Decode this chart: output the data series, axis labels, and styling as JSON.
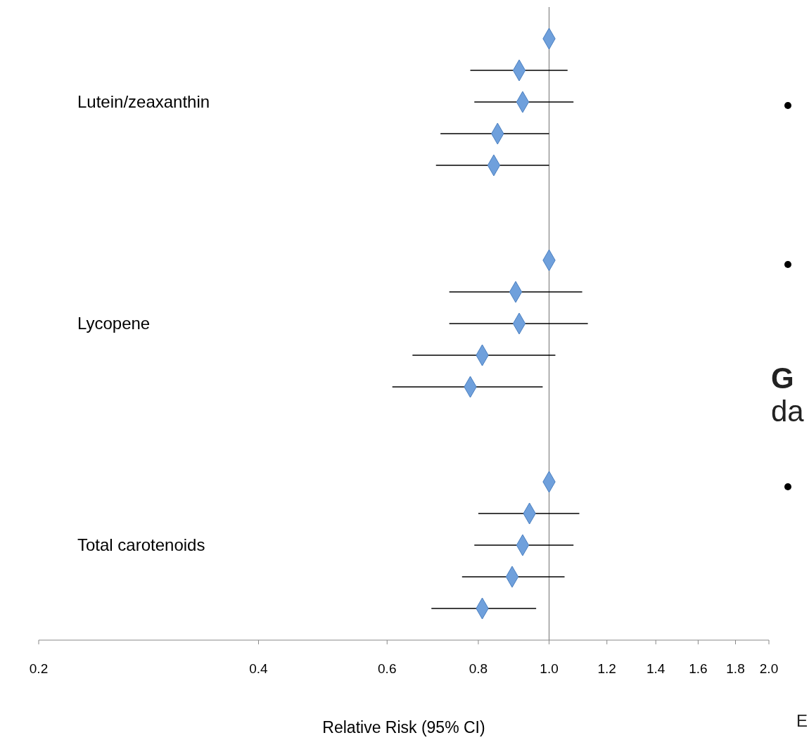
{
  "chart_data": {
    "type": "scatter",
    "orientation": "horizontal",
    "xlabel": "Relative Risk (95% CI)",
    "categories": [
      null,
      null,
      "Lutein/zeaxanthin",
      null,
      null,
      null,
      null,
      null,
      null,
      "Lycopene",
      null,
      null,
      null,
      null,
      null,
      null,
      "Total carotenoids",
      null,
      null
    ],
    "series": [
      {
        "color": "#6fa0dc",
        "values": [
          1.0,
          0.91,
          0.92,
          0.85,
          0.84,
          null,
          null,
          1.0,
          0.9,
          0.91,
          0.81,
          0.78,
          null,
          null,
          1.0,
          0.94,
          0.92,
          0.89,
          0.81
        ],
        "errors": [
          null,
          [
            0.78,
            1.06
          ],
          [
            0.79,
            1.08
          ],
          [
            0.71,
            1.0
          ],
          [
            0.7,
            1.0
          ],
          null,
          null,
          null,
          [
            0.73,
            1.11
          ],
          [
            0.73,
            1.13
          ],
          [
            0.65,
            1.02
          ],
          [
            0.61,
            0.98
          ],
          null,
          null,
          null,
          [
            0.8,
            1.1
          ],
          [
            0.79,
            1.08
          ],
          [
            0.76,
            1.05
          ],
          [
            0.69,
            0.96
          ]
        ]
      }
    ],
    "log": "x",
    "xlim": [
      0.2,
      2.0
    ],
    "xticks": [
      {
        "value": 0.2,
        "label": "0.2"
      },
      {
        "value": 0.4,
        "label": "0.4"
      },
      {
        "value": 0.6,
        "label": "0.6"
      },
      {
        "value": 0.8,
        "label": "0.8"
      },
      {
        "value": 1.0,
        "label": "1.0"
      },
      {
        "value": 1.2,
        "label": "1.2"
      },
      {
        "value": 1.4,
        "label": "1.4"
      },
      {
        "value": 1.6,
        "label": "1.6"
      },
      {
        "value": 1.8,
        "label": "1.8"
      },
      {
        "value": 2.0,
        "label": "2.0"
      }
    ],
    "marker": "diamond",
    "grid": false,
    "ref_lines": [
      {
        "axis": "x",
        "value": 1.0,
        "color": "#8c8c8c"
      }
    ],
    "annotations": [
      "G",
      "da",
      "E"
    ]
  }
}
